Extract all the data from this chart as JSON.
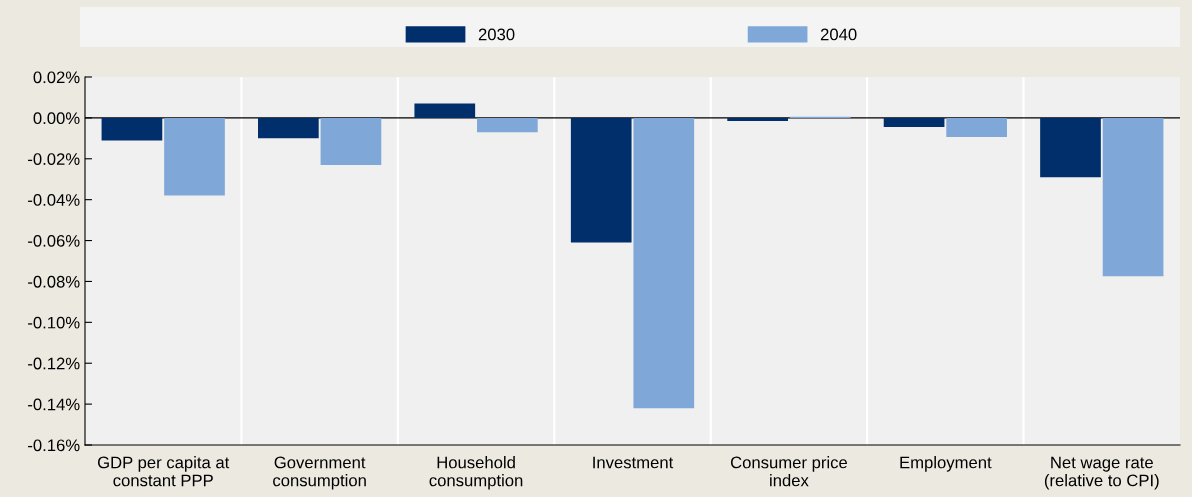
{
  "chart_data": {
    "type": "bar",
    "categories": [
      "GDP per capita at\nconstant PPP",
      "Government\nconsumption",
      "Household\nconsumption",
      "Investment",
      "Consumer price\nindex",
      "Employment",
      "Net wage rate\n(relative to CPI)"
    ],
    "series": [
      {
        "name": "2030",
        "color": "#002f6c",
        "values": [
          -0.011,
          -0.01,
          0.007,
          -0.061,
          -0.0015,
          -0.0044,
          -0.029
        ]
      },
      {
        "name": "2040",
        "color": "#7fa8d9",
        "values": [
          -0.038,
          -0.023,
          -0.007,
          -0.142,
          0.0006,
          -0.0093,
          -0.0775
        ]
      }
    ],
    "ylim": [
      -0.16,
      0.02
    ],
    "yticks": [
      {
        "value": 0.02,
        "label": "0.02%"
      },
      {
        "value": 0.0,
        "label": "0.00%"
      },
      {
        "value": -0.02,
        "label": "-0.02%"
      },
      {
        "value": -0.04,
        "label": "-0.04%"
      },
      {
        "value": -0.06,
        "label": "-0.06%"
      },
      {
        "value": -0.08,
        "label": "-0.08%"
      },
      {
        "value": -0.1,
        "label": "-0.10%"
      },
      {
        "value": -0.12,
        "label": "-0.12%"
      },
      {
        "value": -0.14,
        "label": "-0.14%"
      },
      {
        "value": -0.16,
        "label": "-0.16%"
      }
    ],
    "legend": "top",
    "grid": false
  }
}
